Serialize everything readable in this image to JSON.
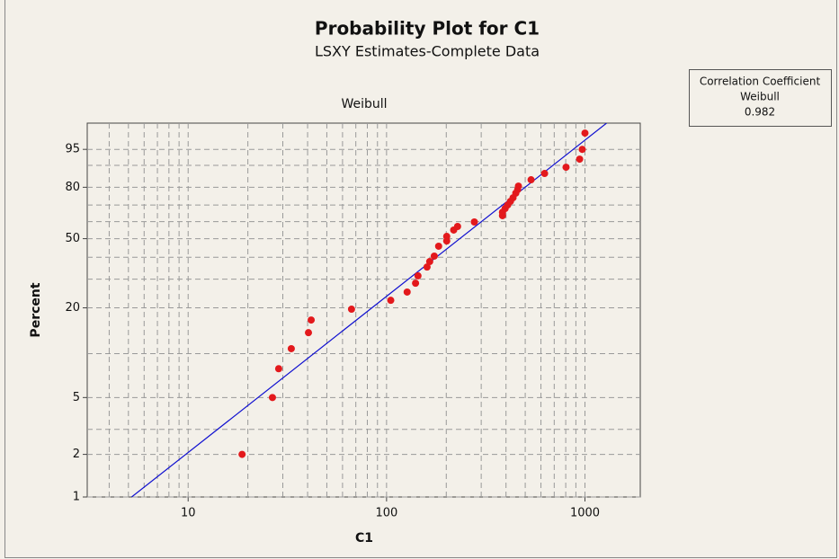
{
  "chart_data": {
    "type": "probability",
    "title": "Probability Plot for C1",
    "subtitle": "LSXY Estimates-Complete Data",
    "distribution_label": "Weibull",
    "x_label": "C1",
    "y_label": "Percent",
    "info_box": [
      "Correlation Coefficient",
      "Weibull",
      "0.982"
    ],
    "x": [
      18.7,
      26.6,
      28.6,
      33.1,
      40.4,
      41.7,
      66.6,
      105,
      127,
      140,
      144,
      160,
      165,
      174,
      183,
      201,
      201,
      218,
      228,
      277,
      384,
      384,
      396,
      408,
      421,
      434,
      448,
      458,
      462,
      535,
      626,
      803,
      940,
      969,
      1000
    ],
    "values": [
      2.0,
      5.0,
      7.9,
      10.8,
      13.8,
      16.7,
      19.6,
      22.3,
      25.1,
      28.4,
      31.4,
      35.3,
      37.9,
      40.6,
      45.8,
      48.7,
      51.3,
      55.0,
      57.1,
      59.8,
      63.6,
      65.7,
      67.9,
      70.0,
      72.1,
      74.2,
      76.8,
      78.7,
      80.6,
      83.8,
      86.7,
      89.3,
      92.2,
      95.0,
      98.0
    ],
    "color": "#e3191c",
    "fit_line": {
      "x": [
        5.19,
        1285
      ],
      "y": [
        1,
        99
      ],
      "color": "#1010d0"
    },
    "xlim": [
      3.1,
      1900
    ],
    "ylim": [
      1,
      99
    ],
    "xticks": [
      10,
      100,
      1000
    ],
    "yticks": [
      1,
      2,
      5,
      20,
      50,
      80,
      95
    ],
    "x_minor_grid": [
      4,
      5,
      6,
      7,
      8,
      9,
      20,
      30,
      40,
      50,
      60,
      70,
      80,
      90,
      200,
      300,
      400,
      500,
      600,
      700,
      800,
      900
    ],
    "y_minor_grid": [
      3,
      10,
      30,
      40,
      60,
      70,
      90
    ],
    "x_scale": "log",
    "y_scale": "weibull",
    "grid": true
  }
}
